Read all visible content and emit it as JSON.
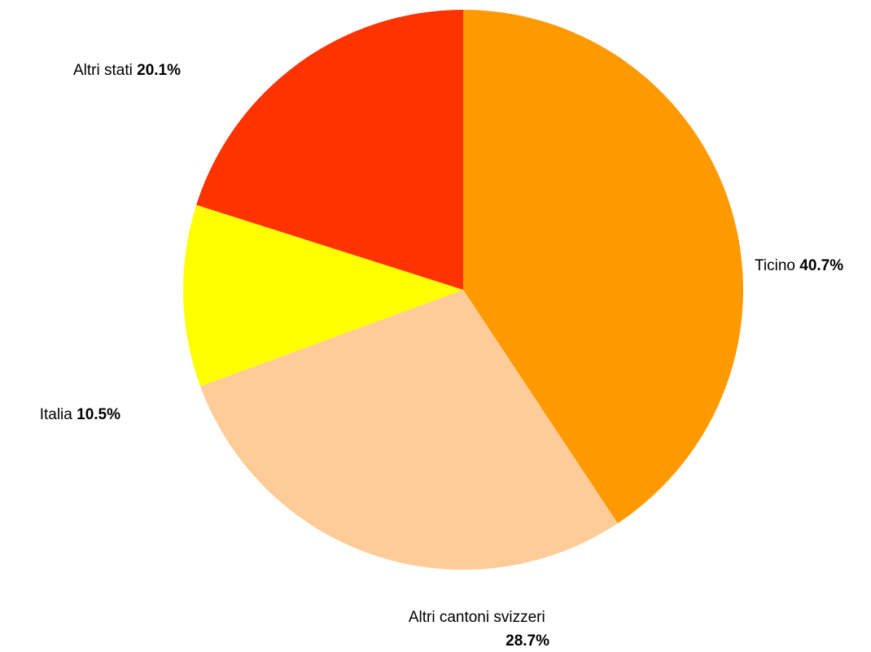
{
  "chart_data": {
    "type": "pie",
    "title": "",
    "start_angle_deg": 0,
    "direction": "clockwise",
    "slices": [
      {
        "name": "Ticino",
        "value": 40.7,
        "value_label": "40.7%",
        "color": "#ff9900"
      },
      {
        "name": "Altri cantoni svizzeri",
        "value": 28.7,
        "value_label": "28.7%",
        "color": "#ffcc99"
      },
      {
        "name": "Italia",
        "value": 10.5,
        "value_label": "10.5%",
        "color": "#ffff00"
      },
      {
        "name": "Altri stati",
        "value": 20.1,
        "value_label": "20.1%",
        "color": "#ff3300"
      }
    ]
  }
}
